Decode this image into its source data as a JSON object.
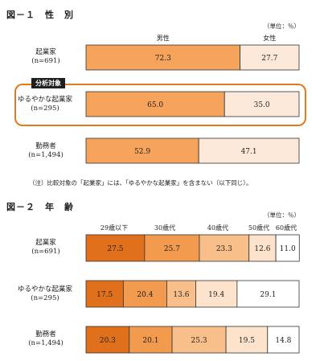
{
  "fig1": {
    "title": "図－１　性　別",
    "unit": "（単位：％）",
    "badge": "分析対象",
    "note": "（注）比較対象の「起業家」には、「ゆるやかな起業家」を含まない（以下同じ）。"
  },
  "fig2": {
    "title": "図－２　年　齢",
    "unit": "（単位：％）"
  },
  "chart_data": [
    {
      "type": "bar",
      "orientation": "horizontal",
      "stacked": true,
      "title": "図－１　性　別",
      "unit": "（単位：％）",
      "series": [
        {
          "name": "男性",
          "color": "#f6a35b"
        },
        {
          "name": "女性",
          "color": "#fde9d9"
        }
      ],
      "rows": [
        {
          "label": "起業家",
          "n": "(n=691)",
          "values": [
            72.3,
            27.7
          ],
          "value_labels": [
            "72.3",
            "27.7"
          ]
        },
        {
          "label": "ゆるやかな起業家",
          "n": "(n=295)",
          "values": [
            65.0,
            35.0
          ],
          "value_labels": [
            "65.0",
            "35.0"
          ]
        },
        {
          "label": "勤務者",
          "n": "(n=1,494)",
          "values": [
            52.9,
            47.1
          ],
          "value_labels": [
            "52.9",
            "47.1"
          ]
        }
      ],
      "xlim": [
        0,
        100
      ]
    },
    {
      "type": "bar",
      "orientation": "horizontal",
      "stacked": true,
      "title": "図－２　年　齢",
      "unit": "（単位：％）",
      "series": [
        {
          "name": "29歳以下",
          "color": "#e0701c"
        },
        {
          "name": "30歳代",
          "color": "#f29a4e"
        },
        {
          "name": "40歳代",
          "color": "#f8bf8b"
        },
        {
          "name": "50歳代",
          "color": "#fde3cc"
        },
        {
          "name": "60歳代",
          "color": "#ffffff"
        }
      ],
      "rows": [
        {
          "label": "起業家",
          "n": "(n=691)",
          "values": [
            27.5,
            25.7,
            23.3,
            12.6,
            11.0
          ],
          "value_labels": [
            "27.5",
            "25.7",
            "23.3",
            "12.6",
            "11.0"
          ]
        },
        {
          "label": "ゆるやかな起業家",
          "n": "(n=295)",
          "values": [
            17.5,
            20.4,
            13.6,
            19.4,
            29.1
          ],
          "value_labels": [
            "17.5",
            "20.4",
            "13.6",
            "19.4",
            "29.1"
          ]
        },
        {
          "label": "勤務者",
          "n": "(n=1,494)",
          "values": [
            20.3,
            20.1,
            25.3,
            19.5,
            14.8
          ],
          "value_labels": [
            "20.3",
            "20.1",
            "25.3",
            "19.5",
            "14.8"
          ]
        }
      ],
      "xlim": [
        0,
        100
      ]
    }
  ]
}
